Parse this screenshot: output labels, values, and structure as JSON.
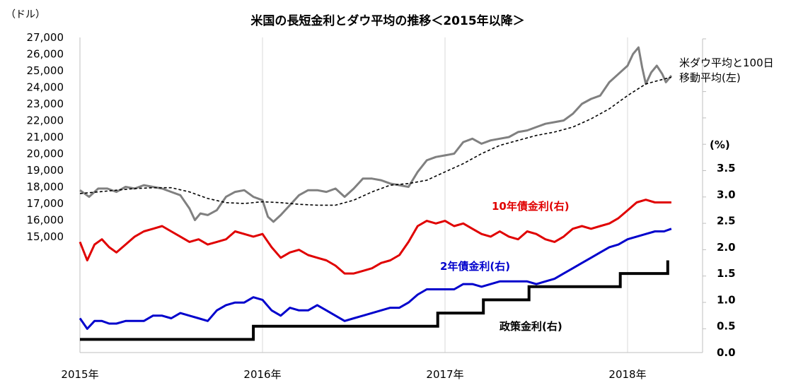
{
  "chart_data": {
    "type": "line",
    "title": "米国の長短金利とダウ平均の推移＜2015年以降＞",
    "left_unit": "（ドル）",
    "right_unit": "(%)",
    "x_ticks": [
      "2015年",
      "2016年",
      "2017年",
      "2018年"
    ],
    "x_range": [
      2015.0,
      2018.42
    ],
    "left_axis": {
      "range": [
        15000,
        27000
      ],
      "ticks": [
        "15,000",
        "16,000",
        "17,000",
        "18,000",
        "19,000",
        "20,000",
        "21,000",
        "22,000",
        "23,000",
        "24,000",
        "25,000",
        "26,000",
        "27,000"
      ]
    },
    "right_axis": {
      "range": [
        0.0,
        3.5
      ],
      "ticks": [
        "0.0",
        "0.5",
        "1.0",
        "1.5",
        "2.0",
        "2.5",
        "3.0",
        "3.5"
      ]
    },
    "dow_label": {
      "line1": "米ダウ平均と100日",
      "line2": "移動平均(左)"
    },
    "series": [
      {
        "name": "米ダウ平均",
        "axis": "left",
        "color": "#808080",
        "style": "solid",
        "points": [
          [
            2015.0,
            17800
          ],
          [
            2015.05,
            17400
          ],
          [
            2015.1,
            17900
          ],
          [
            2015.15,
            17900
          ],
          [
            2015.2,
            17700
          ],
          [
            2015.25,
            18000
          ],
          [
            2015.3,
            17900
          ],
          [
            2015.35,
            18100
          ],
          [
            2015.4,
            18000
          ],
          [
            2015.45,
            17900
          ],
          [
            2015.5,
            17700
          ],
          [
            2015.55,
            17500
          ],
          [
            2015.6,
            16700
          ],
          [
            2015.63,
            16000
          ],
          [
            2015.66,
            16400
          ],
          [
            2015.7,
            16300
          ],
          [
            2015.75,
            16600
          ],
          [
            2015.8,
            17400
          ],
          [
            2015.85,
            17700
          ],
          [
            2015.9,
            17800
          ],
          [
            2015.95,
            17400
          ],
          [
            2016.0,
            17200
          ],
          [
            2016.03,
            16200
          ],
          [
            2016.06,
            15900
          ],
          [
            2016.1,
            16300
          ],
          [
            2016.15,
            16900
          ],
          [
            2016.2,
            17500
          ],
          [
            2016.25,
            17800
          ],
          [
            2016.3,
            17800
          ],
          [
            2016.35,
            17700
          ],
          [
            2016.4,
            17900
          ],
          [
            2016.45,
            17400
          ],
          [
            2016.5,
            17900
          ],
          [
            2016.55,
            18500
          ],
          [
            2016.6,
            18500
          ],
          [
            2016.65,
            18400
          ],
          [
            2016.7,
            18200
          ],
          [
            2016.75,
            18100
          ],
          [
            2016.8,
            18000
          ],
          [
            2016.85,
            18900
          ],
          [
            2016.9,
            19600
          ],
          [
            2016.95,
            19800
          ],
          [
            2017.0,
            19900
          ],
          [
            2017.05,
            20000
          ],
          [
            2017.1,
            20700
          ],
          [
            2017.15,
            20900
          ],
          [
            2017.2,
            20600
          ],
          [
            2017.25,
            20800
          ],
          [
            2017.3,
            20900
          ],
          [
            2017.35,
            21000
          ],
          [
            2017.4,
            21300
          ],
          [
            2017.45,
            21400
          ],
          [
            2017.5,
            21600
          ],
          [
            2017.55,
            21800
          ],
          [
            2017.6,
            21900
          ],
          [
            2017.65,
            22000
          ],
          [
            2017.7,
            22400
          ],
          [
            2017.75,
            23000
          ],
          [
            2017.8,
            23300
          ],
          [
            2017.85,
            23500
          ],
          [
            2017.9,
            24300
          ],
          [
            2017.95,
            24800
          ],
          [
            2018.0,
            25300
          ],
          [
            2018.03,
            26000
          ],
          [
            2018.06,
            26400
          ],
          [
            2018.08,
            25200
          ],
          [
            2018.1,
            24200
          ],
          [
            2018.13,
            24900
          ],
          [
            2018.16,
            25300
          ],
          [
            2018.19,
            24800
          ],
          [
            2018.21,
            24300
          ],
          [
            2018.24,
            24700
          ]
        ]
      },
      {
        "name": "100日移動平均",
        "axis": "left",
        "color": "#000000",
        "style": "dashed",
        "points": [
          [
            2015.0,
            17600
          ],
          [
            2015.1,
            17700
          ],
          [
            2015.2,
            17800
          ],
          [
            2015.3,
            17900
          ],
          [
            2015.4,
            17950
          ],
          [
            2015.5,
            17950
          ],
          [
            2015.6,
            17700
          ],
          [
            2015.7,
            17300
          ],
          [
            2015.8,
            17050
          ],
          [
            2015.9,
            17000
          ],
          [
            2016.0,
            17100
          ],
          [
            2016.1,
            17050
          ],
          [
            2016.2,
            16950
          ],
          [
            2016.3,
            16900
          ],
          [
            2016.4,
            16900
          ],
          [
            2016.5,
            17200
          ],
          [
            2016.6,
            17700
          ],
          [
            2016.7,
            18100
          ],
          [
            2016.8,
            18200
          ],
          [
            2016.9,
            18400
          ],
          [
            2017.0,
            18900
          ],
          [
            2017.1,
            19400
          ],
          [
            2017.2,
            20000
          ],
          [
            2017.3,
            20500
          ],
          [
            2017.4,
            20800
          ],
          [
            2017.5,
            21100
          ],
          [
            2017.6,
            21300
          ],
          [
            2017.7,
            21600
          ],
          [
            2017.8,
            22100
          ],
          [
            2017.9,
            22700
          ],
          [
            2018.0,
            23500
          ],
          [
            2018.1,
            24200
          ],
          [
            2018.2,
            24500
          ],
          [
            2018.24,
            24600
          ]
        ]
      },
      {
        "name": "10年債金利(右)",
        "axis": "right",
        "color": "#e00000",
        "style": "solid",
        "points": [
          [
            2015.0,
            2.1
          ],
          [
            2015.04,
            1.75
          ],
          [
            2015.08,
            2.05
          ],
          [
            2015.12,
            2.15
          ],
          [
            2015.16,
            2.0
          ],
          [
            2015.2,
            1.9
          ],
          [
            2015.25,
            2.05
          ],
          [
            2015.3,
            2.2
          ],
          [
            2015.35,
            2.3
          ],
          [
            2015.4,
            2.35
          ],
          [
            2015.45,
            2.4
          ],
          [
            2015.5,
            2.3
          ],
          [
            2015.55,
            2.2
          ],
          [
            2015.6,
            2.1
          ],
          [
            2015.65,
            2.15
          ],
          [
            2015.7,
            2.05
          ],
          [
            2015.75,
            2.1
          ],
          [
            2015.8,
            2.15
          ],
          [
            2015.85,
            2.3
          ],
          [
            2015.9,
            2.25
          ],
          [
            2015.95,
            2.2
          ],
          [
            2016.0,
            2.25
          ],
          [
            2016.05,
            2.0
          ],
          [
            2016.1,
            1.8
          ],
          [
            2016.15,
            1.9
          ],
          [
            2016.2,
            1.95
          ],
          [
            2016.25,
            1.85
          ],
          [
            2016.3,
            1.8
          ],
          [
            2016.35,
            1.75
          ],
          [
            2016.4,
            1.65
          ],
          [
            2016.45,
            1.5
          ],
          [
            2016.5,
            1.5
          ],
          [
            2016.55,
            1.55
          ],
          [
            2016.6,
            1.6
          ],
          [
            2016.65,
            1.7
          ],
          [
            2016.7,
            1.75
          ],
          [
            2016.75,
            1.85
          ],
          [
            2016.8,
            2.1
          ],
          [
            2016.85,
            2.4
          ],
          [
            2016.9,
            2.5
          ],
          [
            2016.95,
            2.45
          ],
          [
            2017.0,
            2.5
          ],
          [
            2017.05,
            2.4
          ],
          [
            2017.1,
            2.45
          ],
          [
            2017.15,
            2.35
          ],
          [
            2017.2,
            2.25
          ],
          [
            2017.25,
            2.2
          ],
          [
            2017.3,
            2.3
          ],
          [
            2017.35,
            2.2
          ],
          [
            2017.4,
            2.15
          ],
          [
            2017.45,
            2.3
          ],
          [
            2017.5,
            2.25
          ],
          [
            2017.55,
            2.15
          ],
          [
            2017.6,
            2.1
          ],
          [
            2017.65,
            2.2
          ],
          [
            2017.7,
            2.35
          ],
          [
            2017.75,
            2.4
          ],
          [
            2017.8,
            2.35
          ],
          [
            2017.85,
            2.4
          ],
          [
            2017.9,
            2.45
          ],
          [
            2017.95,
            2.55
          ],
          [
            2018.0,
            2.7
          ],
          [
            2018.05,
            2.85
          ],
          [
            2018.1,
            2.9
          ],
          [
            2018.15,
            2.85
          ],
          [
            2018.2,
            2.85
          ],
          [
            2018.24,
            2.85
          ]
        ]
      },
      {
        "name": "2年債金利(右)",
        "axis": "right",
        "color": "#0000cc",
        "style": "solid",
        "points": [
          [
            2015.0,
            0.65
          ],
          [
            2015.04,
            0.45
          ],
          [
            2015.08,
            0.6
          ],
          [
            2015.12,
            0.6
          ],
          [
            2015.16,
            0.55
          ],
          [
            2015.2,
            0.55
          ],
          [
            2015.25,
            0.6
          ],
          [
            2015.3,
            0.6
          ],
          [
            2015.35,
            0.6
          ],
          [
            2015.4,
            0.7
          ],
          [
            2015.45,
            0.7
          ],
          [
            2015.5,
            0.65
          ],
          [
            2015.55,
            0.75
          ],
          [
            2015.6,
            0.7
          ],
          [
            2015.65,
            0.65
          ],
          [
            2015.7,
            0.6
          ],
          [
            2015.75,
            0.8
          ],
          [
            2015.8,
            0.9
          ],
          [
            2015.85,
            0.95
          ],
          [
            2015.9,
            0.95
          ],
          [
            2015.95,
            1.05
          ],
          [
            2016.0,
            1.0
          ],
          [
            2016.05,
            0.8
          ],
          [
            2016.1,
            0.7
          ],
          [
            2016.15,
            0.85
          ],
          [
            2016.2,
            0.8
          ],
          [
            2016.25,
            0.8
          ],
          [
            2016.3,
            0.9
          ],
          [
            2016.35,
            0.8
          ],
          [
            2016.4,
            0.7
          ],
          [
            2016.45,
            0.6
          ],
          [
            2016.5,
            0.65
          ],
          [
            2016.55,
            0.7
          ],
          [
            2016.6,
            0.75
          ],
          [
            2016.65,
            0.8
          ],
          [
            2016.7,
            0.85
          ],
          [
            2016.75,
            0.85
          ],
          [
            2016.8,
            0.95
          ],
          [
            2016.85,
            1.1
          ],
          [
            2016.9,
            1.2
          ],
          [
            2016.95,
            1.2
          ],
          [
            2017.0,
            1.2
          ],
          [
            2017.05,
            1.2
          ],
          [
            2017.1,
            1.3
          ],
          [
            2017.15,
            1.3
          ],
          [
            2017.2,
            1.25
          ],
          [
            2017.25,
            1.3
          ],
          [
            2017.3,
            1.35
          ],
          [
            2017.35,
            1.35
          ],
          [
            2017.4,
            1.35
          ],
          [
            2017.45,
            1.35
          ],
          [
            2017.5,
            1.3
          ],
          [
            2017.55,
            1.35
          ],
          [
            2017.6,
            1.4
          ],
          [
            2017.65,
            1.5
          ],
          [
            2017.7,
            1.6
          ],
          [
            2017.75,
            1.7
          ],
          [
            2017.8,
            1.8
          ],
          [
            2017.85,
            1.9
          ],
          [
            2017.9,
            2.0
          ],
          [
            2017.95,
            2.05
          ],
          [
            2018.0,
            2.15
          ],
          [
            2018.05,
            2.2
          ],
          [
            2018.1,
            2.25
          ],
          [
            2018.15,
            2.3
          ],
          [
            2018.2,
            2.3
          ],
          [
            2018.24,
            2.35
          ]
        ]
      },
      {
        "name": "政策金利(右)",
        "axis": "right",
        "color": "#000000",
        "style": "step",
        "points": [
          [
            2015.0,
            0.25
          ],
          [
            2015.95,
            0.25
          ],
          [
            2015.95,
            0.5
          ],
          [
            2016.96,
            0.5
          ],
          [
            2016.96,
            0.75
          ],
          [
            2017.21,
            0.75
          ],
          [
            2017.21,
            1.0
          ],
          [
            2017.46,
            1.0
          ],
          [
            2017.46,
            1.25
          ],
          [
            2017.96,
            1.25
          ],
          [
            2017.96,
            1.5
          ],
          [
            2018.22,
            1.5
          ],
          [
            2018.22,
            1.75
          ]
        ]
      }
    ],
    "grid": "vertical at year ticks",
    "legend": "inline labels"
  }
}
